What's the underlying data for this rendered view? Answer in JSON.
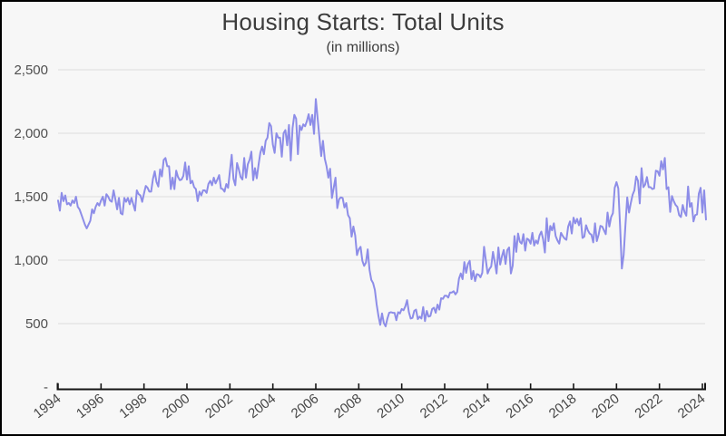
{
  "chart_data": {
    "type": "line",
    "title": "Housing Starts: Total Units",
    "subtitle": "(in millions)",
    "grid": "horizontal",
    "legend": "none",
    "x_axis": {
      "tick_labels": [
        "1994",
        "1996",
        "1998",
        "2000",
        "2002",
        "2004",
        "2006",
        "2008",
        "2010",
        "2012",
        "2014",
        "2016",
        "2018",
        "2020",
        "2022",
        "2024"
      ],
      "tick_years": [
        1994,
        1996,
        1998,
        2000,
        2002,
        2004,
        2006,
        2008,
        2010,
        2012,
        2014,
        2016,
        2018,
        2020,
        2022,
        2024
      ],
      "range_years": [
        1994,
        2024.25
      ]
    },
    "y_axis": {
      "tick_values": [
        0,
        500,
        1000,
        1500,
        2000,
        2500
      ],
      "tick_labels": [
        "-",
        "500",
        "1,000",
        "1,500",
        "2,000",
        "2,500"
      ],
      "range": [
        0,
        2500
      ]
    },
    "colors": {
      "line": "#8d8de8",
      "grid": "#e2e2e2",
      "axis": "#161616",
      "background": "#f7f7f7",
      "border": "#000000",
      "title_text": "#3c3c3c",
      "tick_text": "#4f4f4f"
    },
    "series": [
      {
        "name": "Housing Starts: Total Units",
        "frequency": "monthly",
        "start": "1994-01",
        "end": "2024-03",
        "values": [
          1470,
          1390,
          1530,
          1465,
          1510,
          1440,
          1450,
          1430,
          1470,
          1450,
          1500,
          1420,
          1400,
          1360,
          1320,
          1280,
          1250,
          1280,
          1310,
          1400,
          1370,
          1420,
          1450,
          1430,
          1470,
          1500,
          1430,
          1520,
          1500,
          1470,
          1460,
          1550,
          1480,
          1400,
          1490,
          1370,
          1360,
          1490,
          1460,
          1490,
          1440,
          1490,
          1440,
          1390,
          1550,
          1520,
          1510,
          1460,
          1525,
          1585,
          1570,
          1540,
          1540,
          1640,
          1700,
          1615,
          1580,
          1715,
          1660,
          1790,
          1805,
          1740,
          1740,
          1560,
          1650,
          1560,
          1705,
          1655,
          1630,
          1635,
          1665,
          1770,
          1635,
          1740,
          1605,
          1625,
          1575,
          1560,
          1465,
          1540,
          1510,
          1550,
          1550,
          1530,
          1600,
          1625,
          1590,
          1650,
          1605,
          1635,
          1670,
          1565,
          1560,
          1540,
          1600,
          1570,
          1700,
          1830,
          1640,
          1590,
          1765,
          1715,
          1655,
          1635,
          1805,
          1650,
          1755,
          1790,
          1855,
          1630,
          1725,
          1645,
          1750,
          1845,
          1895,
          1835,
          1940,
          1965,
          2080,
          2055,
          1910,
          1845,
          2000,
          1965,
          1965,
          1815,
          2000,
          2025,
          1905,
          2065,
          1785,
          2040,
          2145,
          2115,
          1835,
          2060,
          2025,
          2070,
          2055,
          2095,
          2150,
          2065,
          2145,
          1995,
          2270,
          2120,
          1970,
          1820,
          1940,
          1800,
          1740,
          1650,
          1720,
          1490,
          1570,
          1650,
          1410,
          1480,
          1495,
          1490,
          1415,
          1450,
          1355,
          1330,
          1185,
          1265,
          1195,
          1040,
          1085,
          1105,
          995,
          955,
          980,
          1085,
          925,
          845,
          820,
          765,
          650,
          560,
          490,
          580,
          505,
          478,
          540,
          585,
          590,
          585,
          585,
          527,
          590,
          580,
          615,
          605,
          635,
          685,
          590,
          540,
          545,
          600,
          610,
          535,
          555,
          540,
          630,
          520,
          600,
          555,
          560,
          615,
          625,
          585,
          650,
          610,
          700,
          695,
          720,
          720,
          705,
          745,
          745,
          755,
          730,
          750,
          855,
          895,
          850,
          985,
          900,
          970,
          995,
          850,
          915,
          835,
          890,
          885,
          865,
          900,
          1105,
          1000,
          895,
          930,
          950,
          1065,
          985,
          895,
          1100,
          965,
          1030,
          1080,
          970,
          1080,
          1100,
          895,
          955,
          1190,
          1065,
          1210,
          1145,
          1130,
          1205,
          1075,
          1170,
          1160,
          1130,
          1215,
          1115,
          1155,
          1130,
          1195,
          1225,
          1165,
          1060,
          1330,
          1150,
          1270,
          1235,
          1290,
          1190,
          1155,
          1130,
          1215,
          1190,
          1170,
          1160,
          1265,
          1305,
          1210,
          1335,
          1290,
          1325,
          1275,
          1330,
          1175,
          1185,
          1275,
          1235,
          1210,
          1200,
          1140,
          1290,
          1150,
          1200,
          1270,
          1265,
          1235,
          1205,
          1375,
          1265,
          1340,
          1370,
          1570,
          1615,
          1565,
          1270,
          934,
          1040,
          1275,
          1495,
          1375,
          1450,
          1515,
          1550,
          1660,
          1625,
          1447,
          1725,
          1575,
          1595,
          1655,
          1575,
          1575,
          1560,
          1565,
          1705,
          1700,
          1665,
          1780,
          1715,
          1805,
          1560,
          1575,
          1380,
          1505,
          1465,
          1435,
          1420,
          1355,
          1340,
          1435,
          1380,
          1350,
          1580,
          1420,
          1450,
          1305,
          1355,
          1360,
          1525,
          1570,
          1375,
          1550,
          1320
        ]
      }
    ]
  }
}
